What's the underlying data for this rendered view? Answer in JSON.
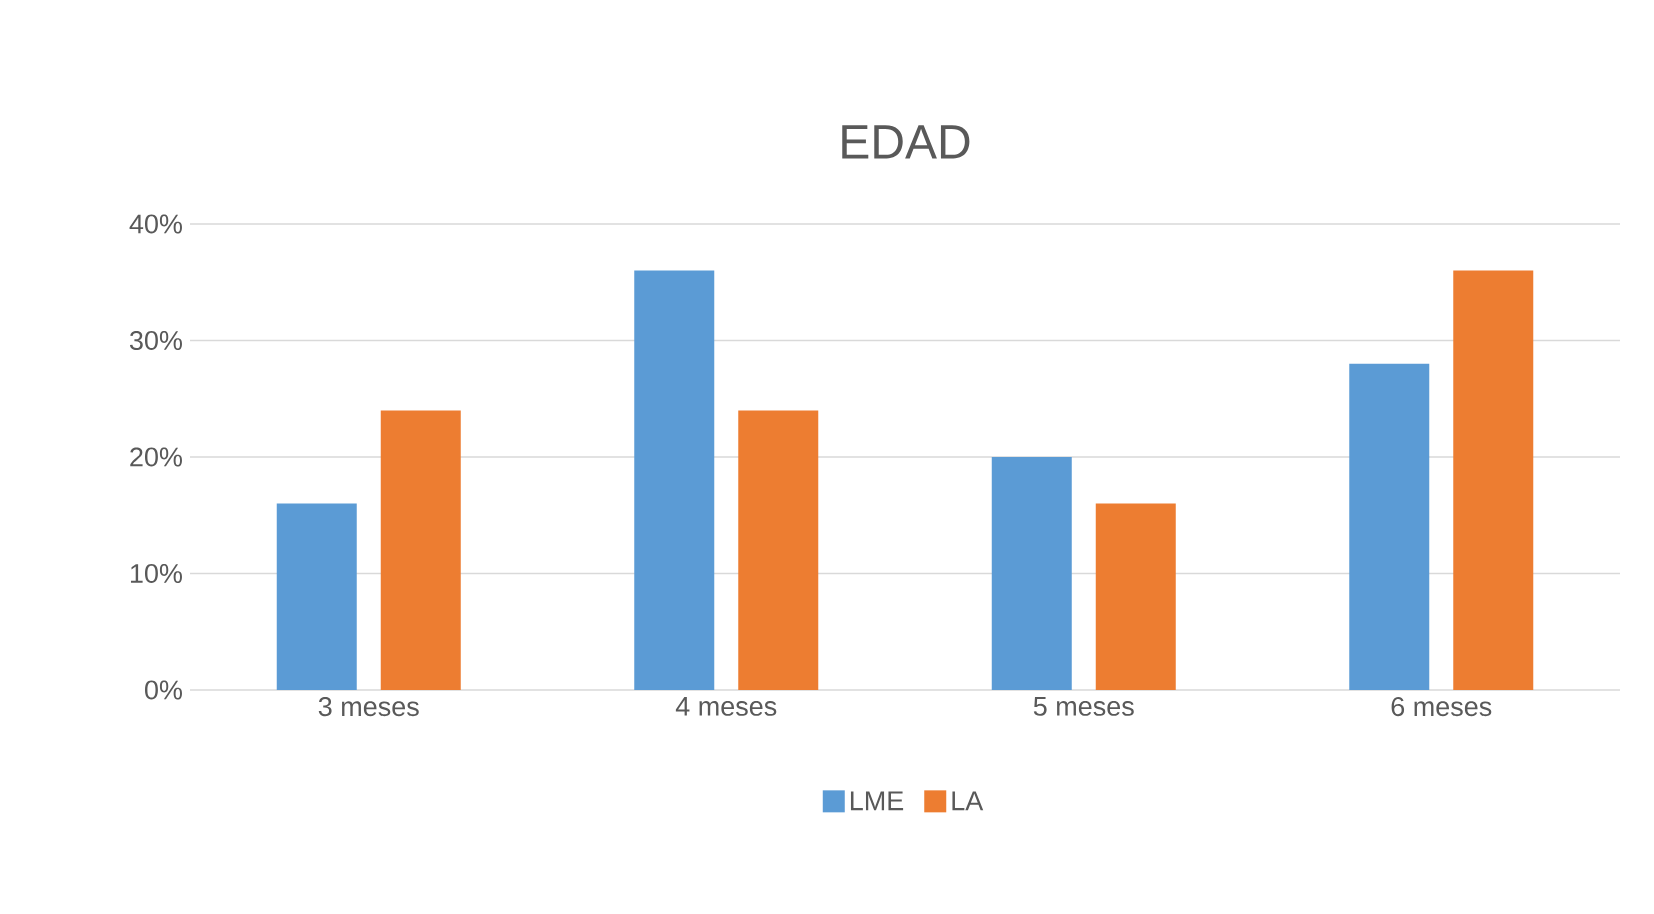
{
  "chart_data": {
    "type": "bar",
    "title": "EDAD",
    "categories": [
      "3 meses",
      "4 meses",
      "5 meses",
      "6 meses"
    ],
    "series": [
      {
        "name": "LME",
        "color": "#5b9bd5",
        "values": [
          16,
          36,
          20,
          28
        ]
      },
      {
        "name": "LA",
        "color": "#ed7d31",
        "values": [
          24,
          24,
          16,
          36
        ]
      }
    ],
    "ylim": [
      0,
      40
    ],
    "yticks": [
      {
        "value": 0,
        "label": "0%"
      },
      {
        "value": 10,
        "label": "10%"
      },
      {
        "value": 20,
        "label": "20%"
      },
      {
        "value": 30,
        "label": "30%"
      },
      {
        "value": 40,
        "label": "40%"
      }
    ],
    "grid": "y",
    "legend": "bottom"
  }
}
